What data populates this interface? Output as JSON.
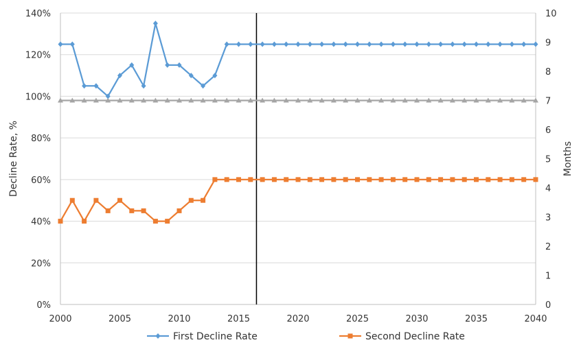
{
  "chart_data": {
    "type": "line",
    "title": "",
    "x": [
      2000,
      2001,
      2002,
      2003,
      2004,
      2005,
      2006,
      2007,
      2008,
      2009,
      2010,
      2011,
      2012,
      2013,
      2014,
      2015,
      2016,
      2017,
      2018,
      2019,
      2020,
      2021,
      2022,
      2023,
      2024,
      2025,
      2026,
      2027,
      2028,
      2029,
      2030,
      2031,
      2032,
      2033,
      2034,
      2035,
      2036,
      2037,
      2038,
      2039,
      2040
    ],
    "xlim": [
      2000,
      2040
    ],
    "xticks": [
      "2000",
      "2005",
      "2010",
      "2015",
      "2020",
      "2025",
      "2030",
      "2035",
      "2040"
    ],
    "ylabel": "Decline Rate, %",
    "ylim": [
      0,
      140
    ],
    "yticks": [
      "0%",
      "20%",
      "40%",
      "60%",
      "80%",
      "100%",
      "120%",
      "140%"
    ],
    "y2label": "Months",
    "y2lim": [
      0,
      10
    ],
    "y2ticks": [
      "0",
      "1",
      "2",
      "3",
      "4",
      "5",
      "6",
      "7",
      "8",
      "9",
      "10"
    ],
    "vertical_line_x": 2016.5,
    "grid": true,
    "legend_position": "bottom",
    "series": [
      {
        "name": "First Decline Rate",
        "color": "#5b9bd5",
        "marker": "diamond",
        "axis": "left",
        "values": [
          125,
          125,
          105,
          105,
          100,
          110,
          115,
          105,
          135,
          115,
          115,
          110,
          105,
          110,
          125,
          125,
          125,
          125,
          125,
          125,
          125,
          125,
          125,
          125,
          125,
          125,
          125,
          125,
          125,
          125,
          125,
          125,
          125,
          125,
          125,
          125,
          125,
          125,
          125,
          125,
          125
        ]
      },
      {
        "name": "Second Decline Rate",
        "color": "#ed7d31",
        "marker": "square",
        "axis": "left",
        "values": [
          40,
          50,
          40,
          50,
          45,
          50,
          45,
          45,
          40,
          40,
          45,
          50,
          50,
          60,
          60,
          60,
          60,
          60,
          60,
          60,
          60,
          60,
          60,
          60,
          60,
          60,
          60,
          60,
          60,
          60,
          60,
          60,
          60,
          60,
          60,
          60,
          60,
          60,
          60,
          60,
          60
        ]
      },
      {
        "color": "#a5a5a5",
        "marker": "triangle",
        "axis": "right",
        "values": [
          7,
          7,
          7,
          7,
          7,
          7,
          7,
          7,
          7,
          7,
          7,
          7,
          7,
          7,
          7,
          7,
          7,
          7,
          7,
          7,
          7,
          7,
          7,
          7,
          7,
          7,
          7,
          7,
          7,
          7,
          7,
          7,
          7,
          7,
          7,
          7,
          7,
          7,
          7,
          7,
          7
        ]
      }
    ]
  }
}
